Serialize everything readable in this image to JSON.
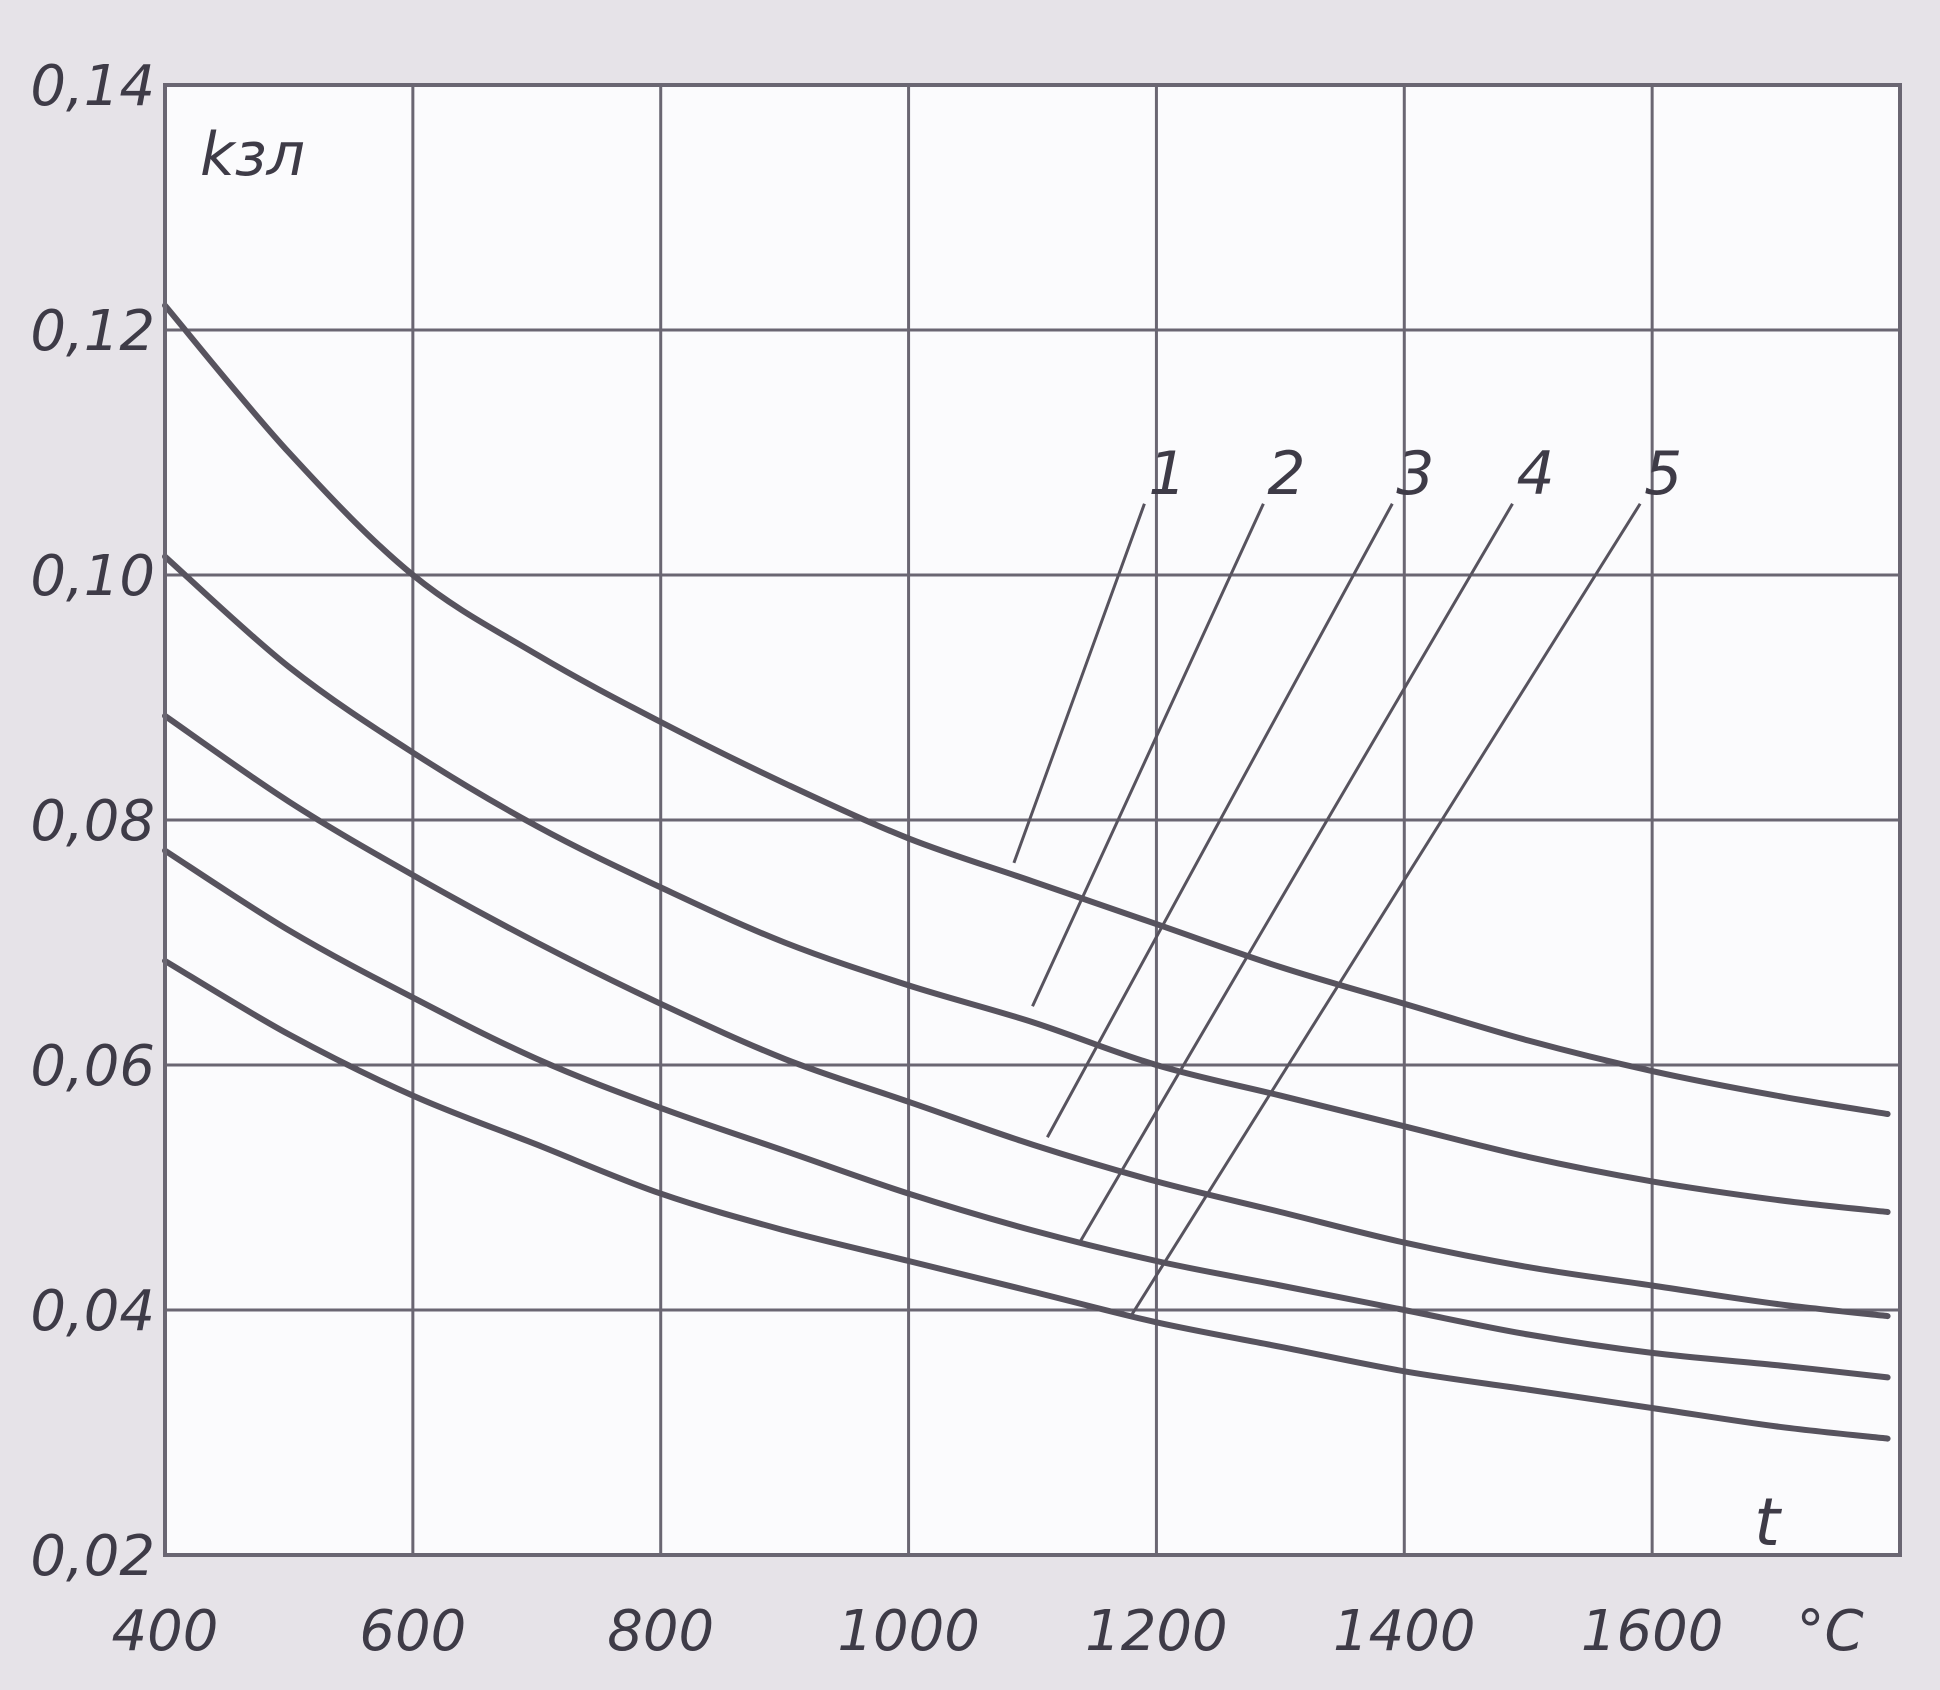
{
  "colors": {
    "background": "#e6e3e8",
    "plot_background": "#fbfbfd",
    "line": "#57535e",
    "grid": "#6a6672",
    "text": "#3e3b47"
  },
  "chart_data": {
    "type": "line",
    "title": "",
    "xlabel": "t",
    "ylabel": "kзл",
    "x_unit": "°C",
    "xlim": [
      400,
      1800
    ],
    "ylim": [
      0.02,
      0.14
    ],
    "grid": true,
    "legend": "none",
    "x_ticks": [
      {
        "value": 400,
        "label": "400"
      },
      {
        "value": 600,
        "label": "600"
      },
      {
        "value": 800,
        "label": "800"
      },
      {
        "value": 1000,
        "label": "1000"
      },
      {
        "value": 1200,
        "label": "1200"
      },
      {
        "value": 1400,
        "label": "1400"
      },
      {
        "value": 1600,
        "label": "1600"
      }
    ],
    "y_ticks": [
      {
        "value": 0.02,
        "label": "0,02"
      },
      {
        "value": 0.04,
        "label": "0,04"
      },
      {
        "value": 0.06,
        "label": "0,06"
      },
      {
        "value": 0.08,
        "label": "0,08"
      },
      {
        "value": 0.1,
        "label": "0,10"
      },
      {
        "value": 0.12,
        "label": "0,12"
      },
      {
        "value": 0.14,
        "label": "0,14"
      }
    ],
    "series": [
      {
        "name": "1",
        "x": [
          400,
          500,
          600,
          700,
          800,
          900,
          1000,
          1100,
          1200,
          1300,
          1400,
          1500,
          1600,
          1700,
          1790
        ],
        "y": [
          0.122,
          0.11,
          0.1,
          0.0935,
          0.088,
          0.083,
          0.0785,
          0.075,
          0.0715,
          0.068,
          0.065,
          0.062,
          0.0595,
          0.0575,
          0.056
        ],
        "label_value": {
          "x": 1085,
          "y": 0.0765
        },
        "label_text": {
          "x": 1200,
          "y": 0.105
        }
      },
      {
        "name": "2",
        "x": [
          400,
          500,
          600,
          700,
          800,
          900,
          1000,
          1100,
          1200,
          1300,
          1400,
          1500,
          1600,
          1700,
          1790
        ],
        "y": [
          0.1015,
          0.0925,
          0.0855,
          0.0795,
          0.0745,
          0.07,
          0.0665,
          0.0635,
          0.06,
          0.0575,
          0.055,
          0.0525,
          0.0505,
          0.049,
          0.048
        ],
        "label_value": {
          "x": 1100,
          "y": 0.0648
        },
        "label_text": {
          "x": 1296,
          "y": 0.105
        }
      },
      {
        "name": "3",
        "x": [
          400,
          500,
          600,
          700,
          800,
          900,
          1000,
          1100,
          1200,
          1300,
          1400,
          1500,
          1600,
          1700,
          1790
        ],
        "y": [
          0.0885,
          0.0815,
          0.0755,
          0.07,
          0.065,
          0.0605,
          0.057,
          0.0535,
          0.0505,
          0.048,
          0.0455,
          0.0435,
          0.042,
          0.0405,
          0.0395
        ],
        "label_value": {
          "x": 1112,
          "y": 0.0541
        },
        "label_text": {
          "x": 1400,
          "y": 0.105
        }
      },
      {
        "name": "4",
        "x": [
          400,
          500,
          600,
          700,
          800,
          900,
          1000,
          1100,
          1200,
          1300,
          1400,
          1500,
          1600,
          1700,
          1790
        ],
        "y": [
          0.0775,
          0.071,
          0.0655,
          0.0605,
          0.0565,
          0.053,
          0.0495,
          0.0465,
          0.044,
          0.042,
          0.04,
          0.038,
          0.0365,
          0.0355,
          0.0345
        ],
        "label_value": {
          "x": 1138,
          "y": 0.0455
        },
        "label_text": {
          "x": 1497,
          "y": 0.105
        }
      },
      {
        "name": "5",
        "x": [
          400,
          500,
          600,
          700,
          800,
          900,
          1000,
          1100,
          1200,
          1300,
          1400,
          1500,
          1600,
          1700,
          1790
        ],
        "y": [
          0.0685,
          0.0625,
          0.0575,
          0.0535,
          0.0495,
          0.0465,
          0.044,
          0.0415,
          0.039,
          0.037,
          0.035,
          0.0335,
          0.032,
          0.0305,
          0.0295
        ],
        "label_value": {
          "x": 1180,
          "y": 0.0396
        },
        "label_text": {
          "x": 1600,
          "y": 0.105
        }
      }
    ]
  }
}
